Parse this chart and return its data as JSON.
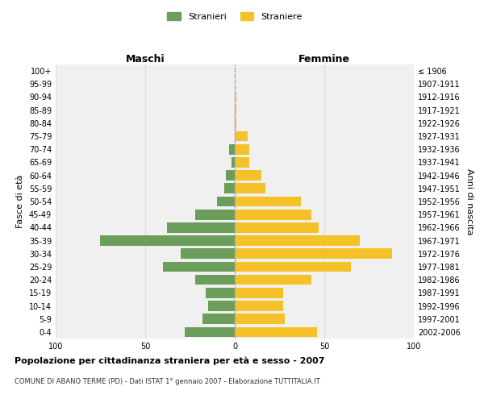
{
  "age_groups": [
    "100+",
    "95-99",
    "90-94",
    "85-89",
    "80-84",
    "75-79",
    "70-74",
    "65-69",
    "60-64",
    "55-59",
    "50-54",
    "45-49",
    "40-44",
    "35-39",
    "30-34",
    "25-29",
    "20-24",
    "15-19",
    "10-14",
    "5-9",
    "0-4"
  ],
  "birth_years": [
    "≤ 1906",
    "1907-1911",
    "1912-1916",
    "1917-1921",
    "1922-1926",
    "1927-1931",
    "1932-1936",
    "1937-1941",
    "1942-1946",
    "1947-1951",
    "1952-1956",
    "1957-1961",
    "1962-1966",
    "1967-1971",
    "1972-1976",
    "1977-1981",
    "1982-1986",
    "1987-1991",
    "1992-1996",
    "1997-2001",
    "2002-2006"
  ],
  "males": [
    0,
    0,
    0,
    0,
    0,
    0,
    3,
    2,
    5,
    6,
    10,
    22,
    38,
    75,
    30,
    40,
    22,
    16,
    15,
    18,
    28
  ],
  "females": [
    0,
    0,
    1,
    1,
    1,
    7,
    8,
    8,
    15,
    17,
    37,
    43,
    47,
    70,
    88,
    65,
    43,
    27,
    27,
    28,
    46
  ],
  "male_color": "#6a9e5a",
  "female_color": "#f5c128",
  "center_line_color": "#aaaaaa",
  "grid_color": "#dddddd",
  "title": "Popolazione per cittadinanza straniera per età e sesso - 2007",
  "subtitle": "COMUNE DI ABANO TERME (PD) - Dati ISTAT 1° gennaio 2007 - Elaborazione TUTTITALIA.IT",
  "left_label": "Maschi",
  "right_label": "Femmine",
  "ylabel_left": "Fasce di età",
  "ylabel_right": "Anni di nascita",
  "legend_male": "Stranieri",
  "legend_female": "Straniere",
  "xlim": 100,
  "background_color": "#ffffff",
  "plot_bg_color": "#f0f0f0"
}
